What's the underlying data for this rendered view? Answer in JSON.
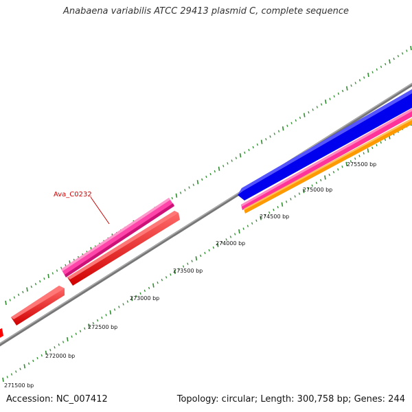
{
  "title": "Anabaena variabilis ATCC 29413 plasmid C, complete sequence",
  "footer": {
    "accession": "Accession: NC_007412",
    "stats": "Topology: circular; Length: 300,758 bp; Genes: 244"
  },
  "gene_label": "Ava_C0232",
  "scale": {
    "unit": "bp",
    "tick_labels": [
      "271500 bp",
      "272000 bp",
      "272500 bp",
      "273000 bp",
      "273500 bp",
      "274000 bp",
      "274500 bp",
      "275000 bp",
      "275500 bp"
    ]
  },
  "colors": {
    "backbone": "#7a7a7a",
    "tick": "#2e8b2e",
    "label_red": "#cc0000",
    "feature_red": "#ff0000",
    "feature_pink": "#ff3399",
    "feature_blue": "#0000ff",
    "feature_orange": "#ff9900"
  }
}
